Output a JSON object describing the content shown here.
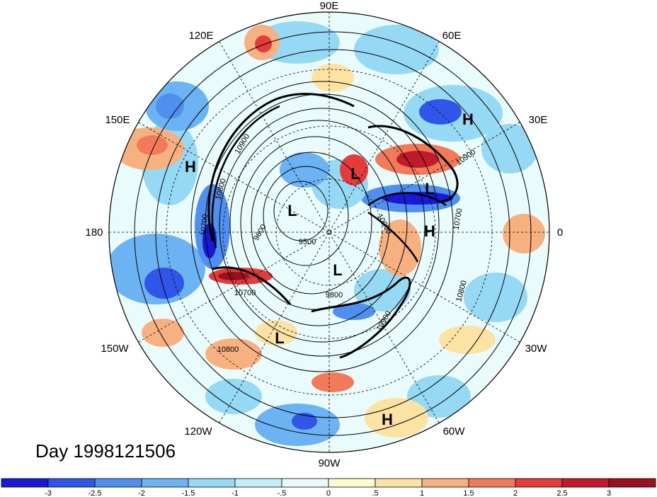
{
  "longitude_labels": [
    "90E",
    "60E",
    "30E",
    "0",
    "30W",
    "60W",
    "90W",
    "120W",
    "150W",
    "180",
    "150E",
    "120E"
  ],
  "timestamp_label": "Day 1998121506",
  "contour_labels": [
    "10900",
    "10900",
    "10800",
    "10700",
    "10700",
    "10800",
    "9500",
    "9600",
    "9800",
    "10700",
    "10800",
    "10000",
    "10900"
  ],
  "pressure_centers": [
    {
      "type": "H",
      "label": "H"
    },
    {
      "type": "H",
      "label": "H"
    },
    {
      "type": "L",
      "label": "L"
    },
    {
      "type": "L",
      "label": "L"
    },
    {
      "type": "L",
      "label": "L"
    },
    {
      "type": "H",
      "label": "H"
    },
    {
      "type": "L",
      "label": "L"
    },
    {
      "type": "L",
      "label": "L"
    },
    {
      "type": "H",
      "label": "H"
    }
  ],
  "colorbar": {
    "tick_labels": [
      "-3",
      "-2.5",
      "-2",
      "-1.5",
      "-1",
      "-.5",
      "0",
      ".5",
      "1",
      "1.5",
      "2",
      "2.5",
      "3"
    ],
    "colors": [
      "#1a1ad6",
      "#2f56e8",
      "#4f90ef",
      "#6bb3f2",
      "#96d9f5",
      "#c2eef7",
      "#eafbfb",
      "#fdfbd2",
      "#fce2a3",
      "#f7b07f",
      "#f27a58",
      "#e43b3b",
      "#c11a2a",
      "#9c0f1e"
    ]
  }
}
